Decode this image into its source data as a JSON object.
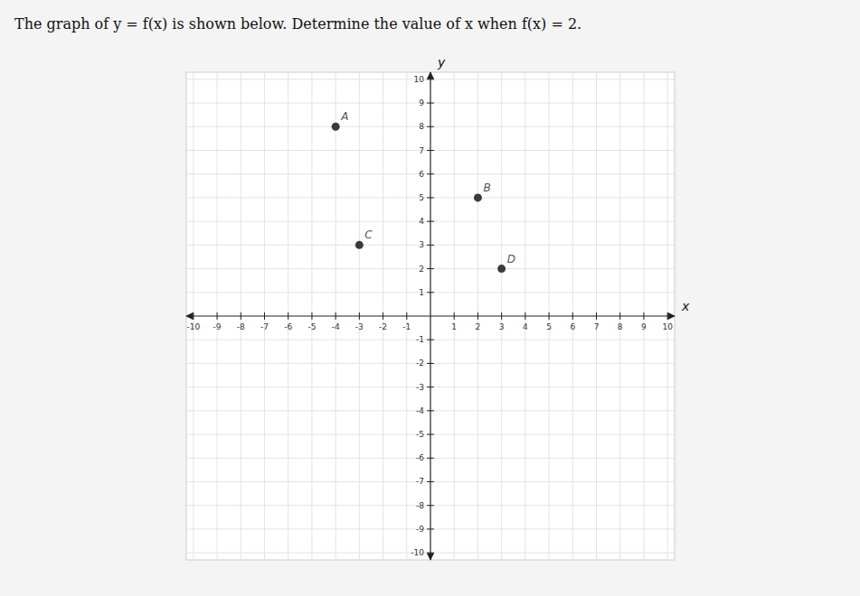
{
  "chart_data": {
    "type": "scatter",
    "title": "The graph of y = f(x) is shown below. Determine the value of x when f(x) = 2.",
    "x_label": "x",
    "y_label": "y",
    "x": [
      -4,
      2,
      -3,
      3
    ],
    "values": [
      8,
      5,
      3,
      2
    ],
    "labels": [
      "A",
      "B",
      "C",
      "D"
    ],
    "color": "#3a3a3a",
    "xlim": [
      -10.3,
      10.3
    ],
    "ylim": [
      -10.3,
      10.3
    ],
    "xticks": [
      -10,
      -9,
      -8,
      -7,
      -6,
      -5,
      -4,
      -3,
      -2,
      -1,
      1,
      2,
      3,
      4,
      5,
      6,
      7,
      8,
      9,
      10
    ],
    "yticks": [
      -10,
      -9,
      -8,
      -7,
      -6,
      -5,
      -4,
      -3,
      -2,
      -1,
      1,
      2,
      3,
      4,
      5,
      6,
      7,
      8,
      9,
      10
    ],
    "grid": true
  }
}
